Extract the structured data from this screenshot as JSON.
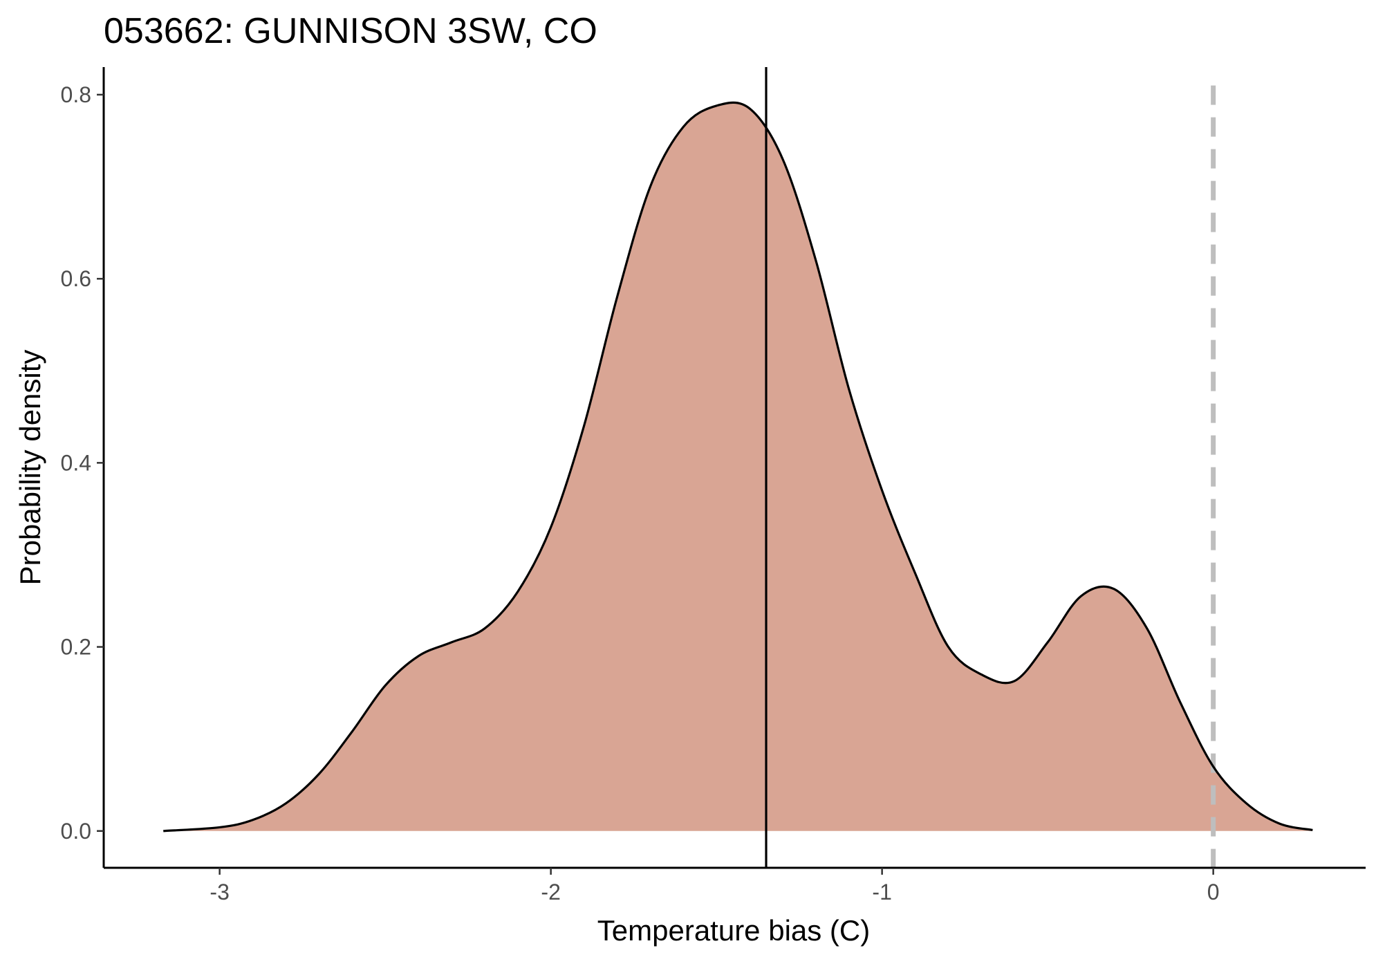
{
  "chart_data": {
    "type": "area",
    "title": "053662: GUNNISON 3SW, CO",
    "xlabel": "Temperature bias (C)",
    "ylabel": "Probability density",
    "xlim": [
      -3.35,
      0.46
    ],
    "ylim": [
      -0.04,
      0.83
    ],
    "x_ticks": [
      -3,
      -2,
      -1,
      0
    ],
    "x_tick_labels": [
      "-3",
      "-2",
      "-1",
      "0"
    ],
    "y_ticks": [
      0.0,
      0.2,
      0.4,
      0.6,
      0.8
    ],
    "y_tick_labels": [
      "0.0",
      "0.2",
      "0.4",
      "0.6",
      "0.8"
    ],
    "grid": false,
    "legend": "none",
    "fill_color": "#d9a594",
    "line_color": "#000000",
    "series": [
      {
        "x": [
          -3.17,
          -3.0,
          -2.9,
          -2.8,
          -2.7,
          -2.6,
          -2.5,
          -2.4,
          -2.3,
          -2.2,
          -2.1,
          -2.0,
          -1.9,
          -1.8,
          -1.7,
          -1.6,
          -1.5,
          -1.4,
          -1.3,
          -1.2,
          -1.1,
          -1.0,
          -0.9,
          -0.8,
          -0.7,
          -0.6,
          -0.5,
          -0.4,
          -0.3,
          -0.2,
          -0.1,
          0.0,
          0.1,
          0.2,
          0.3
        ],
        "y": [
          0.0,
          0.004,
          0.012,
          0.03,
          0.062,
          0.108,
          0.158,
          0.19,
          0.205,
          0.22,
          0.26,
          0.33,
          0.44,
          0.58,
          0.7,
          0.765,
          0.788,
          0.785,
          0.73,
          0.62,
          0.48,
          0.37,
          0.28,
          0.2,
          0.17,
          0.163,
          0.205,
          0.255,
          0.263,
          0.22,
          0.14,
          0.07,
          0.03,
          0.008,
          0.001
        ]
      }
    ],
    "vlines": [
      {
        "x": -1.35,
        "style": "solid",
        "color": "#000000"
      },
      {
        "x": 0.0,
        "style": "dashed",
        "color": "#bebebe"
      }
    ]
  }
}
